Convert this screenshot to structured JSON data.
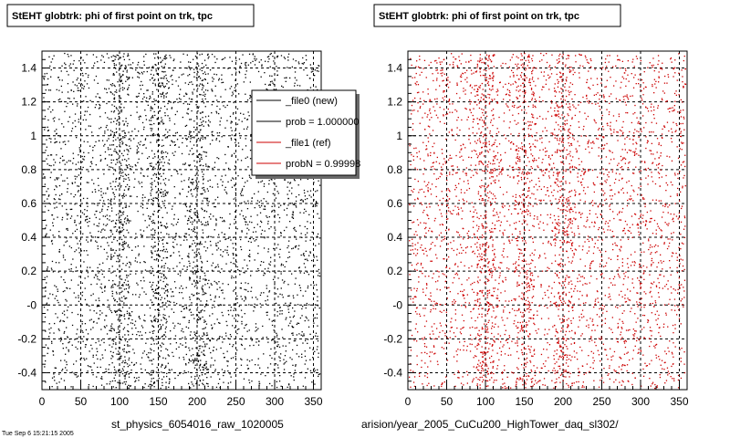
{
  "chart_data": [
    {
      "type": "scatter",
      "title": "StEHT globtrk: phi of first point on trk, tpc",
      "xlabel": "st_physics_6054016_raw_1020005",
      "ylabel": "",
      "xlim": [
        0,
        360
      ],
      "ylim": [
        -0.5,
        1.5
      ],
      "x_ticks": [
        "0",
        "50",
        "100",
        "150",
        "200",
        "250",
        "300",
        "350"
      ],
      "x_tick_values": [
        0,
        50,
        100,
        150,
        200,
        250,
        300,
        350
      ],
      "y_ticks": [
        "1.4",
        "1.2",
        "1",
        "0.8",
        "0.6",
        "0.4",
        "0.2",
        "-0",
        "-0.2",
        "-0.4"
      ],
      "y_tick_values": [
        1.4,
        1.2,
        1.0,
        0.8,
        0.6,
        0.4,
        0.2,
        0.0,
        -0.2,
        -0.4
      ],
      "grid": true,
      "marker_color": "#000000",
      "seed": 12345,
      "density": "dense uniform scatter with denser vertical bands near x = 100, 150, 200",
      "legend": {
        "placement": "top-right",
        "entries": [
          {
            "label": "_file0 (new)",
            "color": "#000000"
          },
          {
            "label": "prob = 1.000000",
            "color": "#000000"
          },
          {
            "label": "_file1 (ref)",
            "color": "#cc0000"
          },
          {
            "label": "probN = 0.99998",
            "color": "#cc0000"
          }
        ]
      }
    },
    {
      "type": "scatter",
      "title": "StEHT globtrk: phi of first point on trk, tpc",
      "xlabel": "arision/year_2005_CuCu200_HighTower_daq_sl302/",
      "ylabel": "",
      "xlim": [
        0,
        360
      ],
      "ylim": [
        -0.5,
        1.5
      ],
      "x_ticks": [
        "0",
        "50",
        "100",
        "150",
        "200",
        "250",
        "300",
        "350"
      ],
      "x_tick_values": [
        0,
        50,
        100,
        150,
        200,
        250,
        300,
        350
      ],
      "y_ticks": [
        "1.4",
        "1.2",
        "1",
        "0.8",
        "0.6",
        "0.4",
        "0.2",
        "-0",
        "-0.2",
        "-0.4"
      ],
      "y_tick_values": [
        1.4,
        1.2,
        1.0,
        0.8,
        0.6,
        0.4,
        0.2,
        0.0,
        -0.2,
        -0.4
      ],
      "grid": true,
      "marker_color": "#cc0000",
      "seed": 67890,
      "density": "dense uniform scatter with denser vertical bands near x = 100, 150, 200"
    }
  ],
  "footer": {
    "text": "Tue Sep  6 15:21:15 2005"
  }
}
